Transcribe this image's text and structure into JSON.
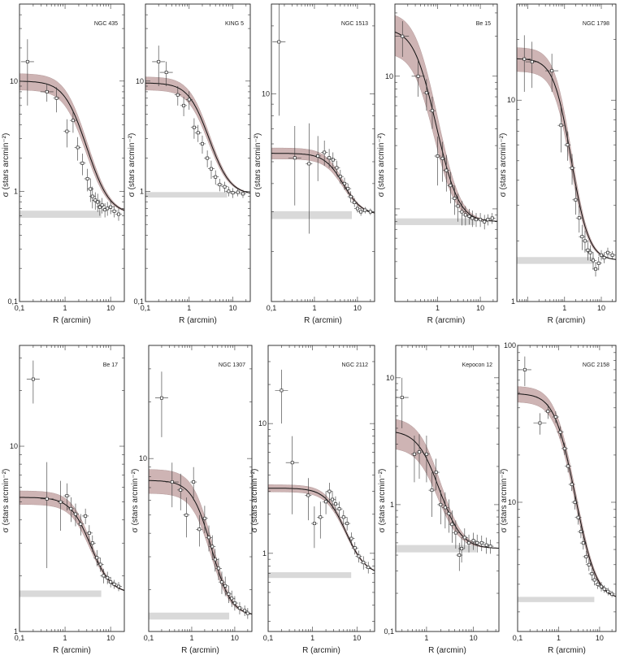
{
  "figure": {
    "band_color": "#c9acac",
    "band_edge_color": "#a98c8c",
    "bg_line_color": "#d9d9d9",
    "curve_color": "#111111",
    "point_color": "#333333"
  },
  "chart_data": [
    {
      "type": "scatter",
      "title": "NGC 435",
      "xlabel": "R (arcmin)",
      "ylabel": "σ (stars arcmin⁻²)",
      "xlim": [
        0.1,
        20
      ],
      "ylim": [
        0.1,
        50
      ],
      "xscale": "log",
      "yscale": "log",
      "xticks": [
        "0,1",
        "1",
        "10"
      ],
      "yticks": [
        "0,1",
        "1",
        "10"
      ],
      "model": {
        "sigma_bg": 0.62,
        "sigma0": 9.4,
        "rc": 1.5,
        "band_rel": 0.18
      },
      "background_band": [
        0.59,
        0.65
      ],
      "points": {
        "r": [
          0.15,
          0.4,
          0.65,
          1.1,
          1.5,
          1.9,
          2.4,
          3.1,
          3.6,
          4.0,
          4.6,
          5.2,
          5.8,
          6.5,
          7.5,
          8.5,
          10,
          12,
          15
        ],
        "y": [
          15.0,
          8.0,
          7.0,
          3.5,
          4.4,
          2.5,
          1.8,
          1.3,
          1.05,
          0.9,
          0.83,
          0.8,
          0.72,
          0.75,
          0.68,
          0.7,
          0.72,
          0.66,
          0.62
        ],
        "err": [
          9.0,
          1.5,
          1.8,
          1.0,
          1.0,
          0.6,
          0.4,
          0.3,
          0.25,
          0.2,
          0.15,
          0.15,
          0.12,
          0.12,
          0.1,
          0.1,
          0.1,
          0.08,
          0.08
        ]
      }
    },
    {
      "type": "scatter",
      "title": "KING 5",
      "xlabel": "R (arcmin)",
      "ylabel": "σ (stars arcmin⁻²)",
      "xlim": [
        0.1,
        25
      ],
      "ylim": [
        0.1,
        50
      ],
      "xscale": "log",
      "yscale": "log",
      "xticks": [
        "0,1",
        "1",
        "10"
      ],
      "yticks": [
        "0,1",
        "1",
        "10"
      ],
      "model": {
        "sigma_bg": 0.93,
        "sigma0": 8.7,
        "rc": 1.6,
        "band_rel": 0.15
      },
      "background_band": [
        0.9,
        0.96
      ],
      "points": {
        "r": [
          0.2,
          0.3,
          0.55,
          0.75,
          1.0,
          1.3,
          1.6,
          2.0,
          2.6,
          3.2,
          4.0,
          5.0,
          6.5,
          8.0,
          10,
          13,
          17
        ],
        "y": [
          15.0,
          12.0,
          7.5,
          6.0,
          6.8,
          3.8,
          3.4,
          2.7,
          2.0,
          1.6,
          1.35,
          1.15,
          1.1,
          1.0,
          0.97,
          0.98,
          0.95
        ],
        "err": [
          6.0,
          3.0,
          1.5,
          1.2,
          1.3,
          0.8,
          0.6,
          0.5,
          0.35,
          0.3,
          0.2,
          0.15,
          0.12,
          0.1,
          0.1,
          0.08,
          0.08
        ]
      }
    },
    {
      "type": "scatter",
      "title": "NGC 1513",
      "xlabel": "R (arcmin)",
      "ylabel": "σ (stars arcmin⁻²)",
      "xlim": [
        0.1,
        25
      ],
      "ylim": [
        1.2,
        25
      ],
      "xscale": "log",
      "yscale": "log",
      "xticks": [
        "0,1",
        "1",
        "10"
      ],
      "yticks": [
        "10"
      ],
      "model": {
        "sigma_bg": 2.9,
        "sigma0": 2.55,
        "rc": 4.0,
        "band_rel": 0.12
      },
      "background_band": [
        2.82,
        2.98
      ],
      "points": {
        "r": [
          0.15,
          0.35,
          0.75,
          1.2,
          1.7,
          2.2,
          2.7,
          3.3,
          4.0,
          5.0,
          6.0,
          7.0,
          8.5,
          10,
          12,
          15,
          20
        ],
        "y": [
          17.0,
          5.2,
          4.9,
          5.3,
          5.5,
          5.2,
          5.1,
          4.7,
          4.3,
          4.0,
          3.8,
          3.5,
          3.3,
          3.1,
          3.0,
          3.05,
          3.0
        ],
        "err": [
          9.0,
          2.0,
          2.5,
          1.2,
          0.7,
          0.5,
          0.4,
          0.35,
          0.3,
          0.25,
          0.2,
          0.2,
          0.15,
          0.12,
          0.12,
          0.1,
          0.1
        ]
      }
    },
    {
      "type": "scatter",
      "title": "Be 15",
      "xlabel": "R (arcmin)",
      "ylabel": "σ (stars arcmin⁻²)",
      "xlim": [
        0.1,
        25
      ],
      "ylim": [
        0.2,
        35
      ],
      "xscale": "log",
      "yscale": "log",
      "xticks": [
        "1",
        "10"
      ],
      "yticks": [
        "10"
      ],
      "model": {
        "sigma_bg": 0.8,
        "sigma0": 22.0,
        "rc": 0.4,
        "band_rel": 0.35
      },
      "background_band": [
        0.77,
        0.83
      ],
      "points": {
        "r": [
          0.15,
          0.35,
          0.55,
          0.75,
          1.0,
          1.3,
          1.6,
          2.0,
          2.5,
          3.0,
          3.7,
          4.5,
          5.5,
          6.5,
          8.0,
          10,
          12.5,
          15,
          19
        ],
        "y": [
          20.0,
          10.0,
          7.5,
          5.5,
          2.5,
          2.4,
          1.95,
          1.5,
          1.2,
          1.05,
          0.95,
          0.9,
          0.88,
          0.85,
          0.83,
          0.83,
          0.8,
          0.83,
          0.85
        ],
        "err": [
          6.0,
          3.0,
          2.0,
          1.5,
          1.0,
          0.8,
          0.6,
          0.4,
          0.3,
          0.25,
          0.2,
          0.15,
          0.12,
          0.12,
          0.1,
          0.1,
          0.1,
          0.08,
          0.08
        ]
      }
    },
    {
      "type": "scatter",
      "title": "NGC 1798",
      "xlabel": "R (arcmin)",
      "ylabel": "σ (stars arcmin⁻²)",
      "xlim": [
        0.05,
        25
      ],
      "ylim": [
        1.0,
        30
      ],
      "xscale": "log",
      "yscale": "log",
      "xticks": [
        "1",
        "10"
      ],
      "yticks": [
        "1",
        "10"
      ],
      "model": {
        "sigma_bg": 1.6,
        "sigma0": 14.5,
        "rc": 0.85,
        "band_rel": 0.15
      },
      "background_band": [
        1.56,
        1.64
      ],
      "points": {
        "r": [
          0.08,
          0.13,
          0.45,
          0.8,
          1.2,
          1.6,
          2.0,
          2.5,
          3.0,
          3.6,
          4.3,
          5.0,
          6.0,
          7.0,
          8.5,
          10,
          12,
          15,
          20
        ],
        "y": [
          16.0,
          15.5,
          14.0,
          7.5,
          6.0,
          4.6,
          3.2,
          2.6,
          2.1,
          2.0,
          1.8,
          1.75,
          1.6,
          1.45,
          1.55,
          1.7,
          1.65,
          1.75,
          1.7
        ],
        "err": [
          5.0,
          4.0,
          3.0,
          2.0,
          1.0,
          0.8,
          0.5,
          0.4,
          0.3,
          0.25,
          0.2,
          0.15,
          0.15,
          0.12,
          0.12,
          0.1,
          0.1,
          0.1,
          0.08
        ]
      }
    },
    {
      "type": "scatter",
      "title": "Be 17",
      "xlabel": "R (arcmin)",
      "ylabel": "σ (stars arcmin⁻²)",
      "xlim": [
        0.1,
        20
      ],
      "ylim": [
        1.0,
        35
      ],
      "xscale": "log",
      "yscale": "log",
      "xticks": [
        "0,1",
        "1",
        "10"
      ],
      "yticks": [
        "1",
        "10"
      ],
      "model": {
        "sigma_bg": 1.6,
        "sigma0": 3.7,
        "rc": 2.7,
        "band_rel": 0.12
      },
      "background_band": [
        1.56,
        1.64
      ],
      "points": {
        "r": [
          0.2,
          0.4,
          0.8,
          1.1,
          1.35,
          1.7,
          2.2,
          2.8,
          3.4,
          4.0,
          5.0,
          6.0,
          7.0,
          8.5,
          10,
          12,
          15
        ],
        "y": [
          23.0,
          5.2,
          5.0,
          5.4,
          4.6,
          4.3,
          3.8,
          4.2,
          3.4,
          3.0,
          2.5,
          2.3,
          2.0,
          1.95,
          1.85,
          1.8,
          1.75
        ],
        "err": [
          6.0,
          3.0,
          1.5,
          0.9,
          0.7,
          0.6,
          0.5,
          0.4,
          0.35,
          0.3,
          0.25,
          0.2,
          0.18,
          0.15,
          0.12,
          0.1,
          0.1
        ]
      }
    },
    {
      "type": "scatter",
      "title": "NGC 1307",
      "xlabel": "R (arcmin)",
      "ylabel": "σ (stars arcmin⁻²)",
      "xlim": [
        0.1,
        25
      ],
      "ylim": [
        1.2,
        40
      ],
      "xscale": "log",
      "yscale": "log",
      "xticks": [
        "0,1",
        "1",
        "10"
      ],
      "yticks": [
        "10"
      ],
      "model": {
        "sigma_bg": 1.45,
        "sigma0": 6.2,
        "rc": 1.9,
        "band_rel": 0.18
      },
      "background_band": [
        1.41,
        1.49
      ],
      "points": {
        "r": [
          0.2,
          0.35,
          0.55,
          0.75,
          1.1,
          1.5,
          2.0,
          2.5,
          3.0,
          3.5,
          4.2,
          5.0,
          6.0,
          7.2,
          8.5,
          10,
          13,
          17,
          20
        ],
        "y": [
          21.0,
          7.5,
          6.8,
          5.0,
          7.5,
          4.2,
          4.8,
          3.8,
          3.4,
          2.9,
          2.6,
          2.2,
          2.1,
          1.9,
          1.8,
          1.7,
          1.6,
          1.55,
          1.5
        ],
        "err": [
          8.0,
          2.0,
          1.5,
          1.2,
          1.5,
          0.8,
          0.8,
          0.6,
          0.5,
          0.4,
          0.35,
          0.3,
          0.25,
          0.2,
          0.18,
          0.15,
          0.12,
          0.1,
          0.1
        ]
      }
    },
    {
      "type": "scatter",
      "title": "NGC 2112",
      "xlabel": "R (arcmin)",
      "ylabel": "σ (stars arcmin⁻²)",
      "xlim": [
        0.1,
        25
      ],
      "ylim": [
        0.25,
        40
      ],
      "xscale": "log",
      "yscale": "log",
      "xticks": [
        "0,1",
        "1",
        "10"
      ],
      "yticks": [
        "1",
        "10"
      ],
      "model": {
        "sigma_bg": 0.68,
        "sigma0": 2.5,
        "rc": 3.8,
        "band_rel": 0.08
      },
      "background_band": [
        0.66,
        0.7
      ],
      "points": {
        "r": [
          0.2,
          0.35,
          0.8,
          1.1,
          1.5,
          2.0,
          2.4,
          2.8,
          3.3,
          4.0,
          5.0,
          6.0,
          7.5,
          9.0,
          11,
          14,
          18
        ],
        "y": [
          18.0,
          5.0,
          2.8,
          1.7,
          1.9,
          2.5,
          3.0,
          2.6,
          2.4,
          2.2,
          1.9,
          1.7,
          1.3,
          1.1,
          0.95,
          0.85,
          0.78
        ],
        "err": [
          8.0,
          3.0,
          1.0,
          0.6,
          0.6,
          0.5,
          0.5,
          0.4,
          0.35,
          0.3,
          0.25,
          0.2,
          0.15,
          0.12,
          0.1,
          0.1,
          0.08
        ]
      }
    },
    {
      "type": "scatter",
      "title": "Kepocon 12",
      "xlabel": "R (arcmin)",
      "ylabel": "σ (stars arcmin⁻²)",
      "xlim": [
        0.22,
        35
      ],
      "ylim": [
        0.1,
        18
      ],
      "xscale": "log",
      "yscale": "log",
      "xticks": [
        "1",
        "10"
      ],
      "yticks": [
        "0,1",
        "1",
        "10"
      ],
      "model": {
        "sigma_bg": 0.45,
        "sigma0": 3.4,
        "rc": 1.1,
        "band_rel": 0.3
      },
      "background_band": [
        0.43,
        0.47
      ],
      "points": {
        "r": [
          0.3,
          0.55,
          0.7,
          1.0,
          1.3,
          1.6,
          2.0,
          2.5,
          3.0,
          3.5,
          4.2,
          5.0,
          5.6,
          6.5,
          8.0,
          10,
          12,
          15,
          19,
          23
        ],
        "y": [
          7.0,
          2.5,
          2.6,
          2.5,
          1.3,
          1.8,
          1.0,
          0.95,
          0.85,
          0.7,
          0.6,
          0.4,
          0.45,
          0.55,
          0.5,
          0.52,
          0.5,
          0.5,
          0.48,
          0.47
        ],
        "err": [
          3.0,
          1.0,
          1.0,
          1.0,
          0.5,
          0.5,
          0.3,
          0.3,
          0.25,
          0.2,
          0.15,
          0.1,
          0.1,
          0.1,
          0.08,
          0.08,
          0.08,
          0.07,
          0.07,
          0.06
        ]
      }
    },
    {
      "type": "scatter",
      "title": "NGC 2158",
      "xlabel": "R (arcmin)",
      "ylabel": "σ (stars arcmin⁻²)",
      "xlim": [
        0.1,
        25
      ],
      "ylim": [
        1.5,
        100
      ],
      "xscale": "log",
      "yscale": "log",
      "xticks": [
        "0,1",
        "1",
        "10"
      ],
      "yticks": [
        "10",
        "100"
      ],
      "model": {
        "sigma_bg": 2.4,
        "sigma0": 47.0,
        "rc": 1.2,
        "band_rel": 0.12
      },
      "background_band": [
        2.35,
        2.45
      ],
      "points": {
        "r": [
          0.15,
          0.35,
          0.55,
          0.85,
          1.1,
          1.4,
          1.7,
          2.1,
          2.5,
          3.0,
          3.5,
          4.0,
          4.7,
          5.5,
          6.5,
          7.5,
          9.0,
          11,
          13,
          16,
          20
        ],
        "y": [
          70.0,
          32.0,
          38.0,
          35.0,
          28.0,
          22.0,
          17.0,
          13.0,
          10.0,
          8.0,
          6.5,
          5.5,
          4.5,
          4.0,
          3.5,
          3.2,
          3.0,
          2.9,
          2.8,
          2.7,
          2.6
        ],
        "err": [
          15.0,
          5.0,
          4.0,
          3.0,
          2.5,
          2.0,
          1.5,
          1.2,
          1.0,
          0.8,
          0.6,
          0.5,
          0.4,
          0.35,
          0.3,
          0.25,
          0.2,
          0.2,
          0.15,
          0.15,
          0.12
        ]
      }
    }
  ]
}
